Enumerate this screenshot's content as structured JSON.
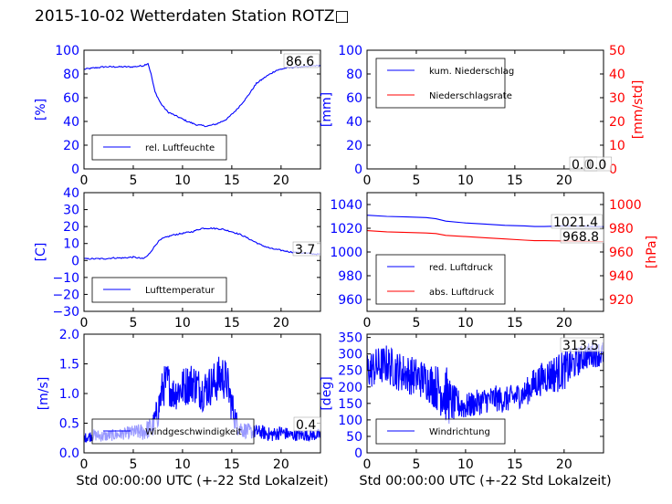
{
  "title": "2015-10-02 Wetterdaten Station ROTZ□",
  "colors": {
    "blue": "#0000ff",
    "red": "#ff0000",
    "black": "#000000"
  },
  "chart_data": [
    {
      "id": "humidity",
      "type": "line",
      "xlim": [
        0,
        24
      ],
      "xticks": [
        "0",
        "5",
        "10",
        "15",
        "20"
      ],
      "ylim": [
        0,
        100
      ],
      "yticks": [
        "0",
        "20",
        "40",
        "60",
        "80",
        "100"
      ],
      "ylabel": "[%]",
      "xlabel": "",
      "current_value": "86.6",
      "legend": {
        "placement": "lower-left",
        "entries": [
          "rel. Luftfeuchte"
        ]
      },
      "series": [
        {
          "name": "rel. Luftfeuchte",
          "color": "#0000ff",
          "x": [
            0,
            1,
            2,
            3,
            4,
            5,
            6,
            6.5,
            6.8,
            7.2,
            7.8,
            8.5,
            9.5,
            10.5,
            11.5,
            12.5,
            13.5,
            14.5,
            15.5,
            16.5,
            17.5,
            18.5,
            19.5,
            20.5,
            21.5,
            22.5,
            23.5
          ],
          "y": [
            84,
            85,
            86,
            86,
            86,
            86,
            87,
            89,
            80,
            65,
            55,
            48,
            44,
            40,
            37,
            36,
            38,
            42,
            50,
            60,
            72,
            78,
            83,
            85,
            86,
            86,
            87
          ]
        }
      ]
    },
    {
      "id": "precip",
      "type": "line",
      "xlim": [
        0,
        24
      ],
      "xticks": [
        "0",
        "5",
        "10",
        "15",
        "20"
      ],
      "ylim": [
        0,
        100
      ],
      "yticks": [
        "0",
        "20",
        "40",
        "60",
        "80",
        "100"
      ],
      "ylabel": "[mm]",
      "y2lim": [
        0,
        50
      ],
      "y2ticks": [
        "0",
        "10",
        "20",
        "30",
        "40",
        "50"
      ],
      "y2label": "[mm/std]",
      "xlabel": "",
      "current_values": [
        "0.0",
        "0.0"
      ],
      "legend": {
        "placement": "upper-left",
        "entries": [
          "kum. Niederschlag",
          "Niederschlagsrate"
        ]
      },
      "series": [
        {
          "name": "kum. Niederschlag",
          "color": "#0000ff",
          "x": [
            0,
            24
          ],
          "y": [
            0,
            0
          ]
        },
        {
          "name": "Niederschlagsrate",
          "color": "#ff0000",
          "axis": "right",
          "x": [
            0,
            24
          ],
          "y": [
            0,
            0
          ]
        }
      ]
    },
    {
      "id": "temperature",
      "type": "line",
      "xlim": [
        0,
        24
      ],
      "xticks": [
        "0",
        "5",
        "10",
        "15",
        "20"
      ],
      "ylim": [
        -30,
        40
      ],
      "yticks": [
        "−30",
        "−20",
        "−10",
        "0",
        "10",
        "20",
        "30",
        "40"
      ],
      "ylabel": "[C]",
      "xlabel": "",
      "current_value": "3.7",
      "legend": {
        "placement": "lower-left",
        "entries": [
          "Lufttemperatur"
        ]
      },
      "series": [
        {
          "name": "Lufttemperatur",
          "color": "#0000ff",
          "x": [
            0,
            1,
            2,
            3,
            4,
            5,
            6,
            6.5,
            7,
            7.5,
            8,
            8.5,
            9,
            10,
            11,
            12,
            13,
            14,
            15,
            15.5,
            16,
            17,
            18,
            19,
            20,
            21,
            22,
            23,
            23.8
          ],
          "y": [
            1,
            1,
            1,
            1.5,
            1.5,
            2,
            1,
            3,
            7,
            11,
            13,
            14,
            15,
            16,
            17,
            19,
            19,
            18.5,
            17,
            16,
            15,
            12,
            9,
            7,
            6,
            5,
            4.5,
            4,
            3.7
          ]
        }
      ]
    },
    {
      "id": "pressure",
      "type": "line",
      "xlim": [
        0,
        24
      ],
      "xticks": [
        "0",
        "5",
        "10",
        "15",
        "20"
      ],
      "ylim": [
        950,
        1050
      ],
      "yticks": [
        "960",
        "980",
        "1000",
        "1020",
        "1040"
      ],
      "ylabel": "",
      "y2lim": [
        910,
        1010
      ],
      "y2ticks": [
        "920",
        "940",
        "960",
        "980",
        "1000"
      ],
      "y2label": "[hPa]",
      "xlabel": "",
      "current_values": [
        "1021.4",
        "968.8"
      ],
      "legend": {
        "placement": "lower-left",
        "entries": [
          "red. Luftdruck",
          "abs. Luftdruck"
        ]
      },
      "series": [
        {
          "name": "red. Luftdruck",
          "color": "#0000ff",
          "x": [
            0,
            2,
            4,
            6,
            7,
            8,
            10,
            12,
            14,
            16,
            17,
            18,
            20,
            22,
            24
          ],
          "y": [
            1031,
            1030,
            1029.5,
            1029,
            1028,
            1026,
            1024.5,
            1023.5,
            1022.5,
            1022,
            1021.5,
            1021.5,
            1022,
            1021.8,
            1021.4
          ]
        },
        {
          "name": "abs. Luftdruck",
          "color": "#ff0000",
          "axis": "right",
          "x": [
            0,
            2,
            4,
            6,
            7,
            8,
            10,
            12,
            14,
            16,
            17,
            18,
            20,
            22,
            24
          ],
          "y": [
            978,
            977,
            976.5,
            976,
            975.5,
            974,
            973,
            972,
            971,
            970,
            969.5,
            969.5,
            969.3,
            969,
            968.8
          ]
        }
      ]
    },
    {
      "id": "windspeed",
      "type": "line",
      "xlim": [
        0,
        24
      ],
      "xticks": [
        "0",
        "5",
        "10",
        "15",
        "20"
      ],
      "ylim": [
        0,
        2
      ],
      "yticks": [
        "0.0",
        "0.5",
        "1.0",
        "1.5",
        "2.0"
      ],
      "ylabel": "[m/s]",
      "xlabel": "Std 00:00:00 UTC (+-22 Std Lokalzeit)",
      "current_value": "0.4",
      "legend": {
        "placement": "lower-left",
        "entries": [
          "Windgeschwindigkeit"
        ]
      },
      "series": [
        {
          "name": "Windgeschwindigkeit",
          "color": "#0000ff",
          "x": [
            0,
            1,
            2,
            3,
            4,
            5,
            6,
            7,
            7.5,
            8,
            8.5,
            9,
            10,
            11,
            12,
            13,
            14,
            14.5,
            15,
            15.5,
            16,
            17,
            18,
            19,
            20,
            21,
            22,
            23,
            24
          ],
          "y": [
            0.25,
            0.3,
            0.28,
            0.3,
            0.32,
            0.35,
            0.35,
            0.45,
            0.7,
            1.1,
            1.2,
            1.0,
            1.1,
            1.2,
            1.05,
            1.15,
            1.3,
            1.2,
            0.8,
            0.5,
            0.4,
            0.35,
            0.35,
            0.3,
            0.35,
            0.3,
            0.3,
            0.3,
            0.3
          ],
          "noise": [
            0.08,
            0.1,
            0.1,
            0.1,
            0.1,
            0.12,
            0.15,
            0.2,
            0.3,
            0.35,
            0.35,
            0.3,
            0.35,
            0.35,
            0.35,
            0.35,
            0.4,
            0.35,
            0.3,
            0.2,
            0.15,
            0.12,
            0.12,
            0.12,
            0.12,
            0.1,
            0.1,
            0.1,
            0.1
          ]
        }
      ]
    },
    {
      "id": "winddir",
      "type": "line",
      "xlim": [
        0,
        24
      ],
      "xticks": [
        "0",
        "5",
        "10",
        "15",
        "20"
      ],
      "ylim": [
        0,
        360
      ],
      "yticks": [
        "0",
        "50",
        "100",
        "150",
        "200",
        "250",
        "300",
        "350"
      ],
      "ylabel": "[deg]",
      "xlabel": "Std 00:00:00 UTC (+-22 Std Lokalzeit)",
      "current_value": "313.5",
      "legend": {
        "placement": "lower-left",
        "entries": [
          "Windrichtung"
        ]
      },
      "series": [
        {
          "name": "Windrichtung",
          "color": "#0000ff",
          "x": [
            0,
            1,
            2,
            3,
            4,
            5,
            6,
            7,
            8,
            8.5,
            9,
            10,
            11,
            12,
            13,
            14,
            15,
            16,
            17,
            18,
            19,
            20,
            21,
            22,
            23,
            24
          ],
          "y": [
            250,
            260,
            270,
            250,
            240,
            230,
            220,
            200,
            180,
            150,
            150,
            140,
            150,
            160,
            165,
            160,
            170,
            180,
            210,
            230,
            240,
            250,
            270,
            290,
            300,
            300
          ],
          "noise": [
            60,
            60,
            60,
            60,
            60,
            60,
            60,
            70,
            90,
            70,
            50,
            40,
            40,
            40,
            40,
            40,
            40,
            40,
            50,
            50,
            60,
            60,
            50,
            40,
            40,
            40
          ]
        }
      ]
    }
  ]
}
